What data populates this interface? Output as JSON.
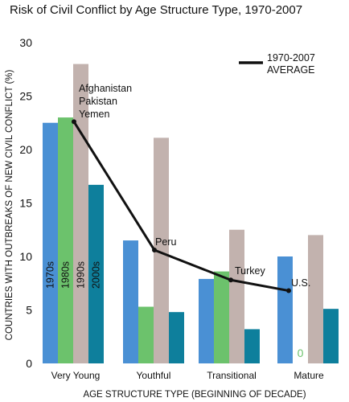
{
  "chart_data": {
    "type": "bar",
    "title": "Risk of Civil Conflict by Age Structure Type, 1970-2007",
    "xlabel": "AGE STRUCTURE TYPE (BEGINNING OF DECADE)",
    "ylabel": "COUNTRIES WITH OUTBREAKS OF NEW CIVIL CONFLICT (%)",
    "ylim": [
      0,
      30
    ],
    "yticks": [
      "0",
      "5",
      "10",
      "15",
      "20",
      "25",
      "30"
    ],
    "categories": [
      "Very Young",
      "Youthful",
      "Transitional",
      "Mature"
    ],
    "series": [
      {
        "name": "1970s",
        "color": "#4a90d4",
        "values": [
          22.5,
          11.5,
          7.9,
          10.0
        ]
      },
      {
        "name": "1980s",
        "color": "#6cc26c",
        "values": [
          23.0,
          5.3,
          8.6,
          0
        ]
      },
      {
        "name": "1990s",
        "color": "#c2b2ae",
        "values": [
          28.0,
          21.1,
          12.5,
          12.0
        ]
      },
      {
        "name": "2000s",
        "color": "#0e7f9c",
        "values": [
          16.7,
          4.8,
          3.2,
          5.1
        ]
      }
    ],
    "average": {
      "name": "1970-2007 AVERAGE",
      "values": [
        22.6,
        10.6,
        7.8,
        6.8
      ],
      "labels": [
        "Afghanistan\nPakistan\nYemen",
        "Peru",
        "Turkey",
        "U.S."
      ]
    },
    "zero_label": "0",
    "zero_label_color": "#6cc26c",
    "grid": false,
    "legend_position": "top-right"
  }
}
